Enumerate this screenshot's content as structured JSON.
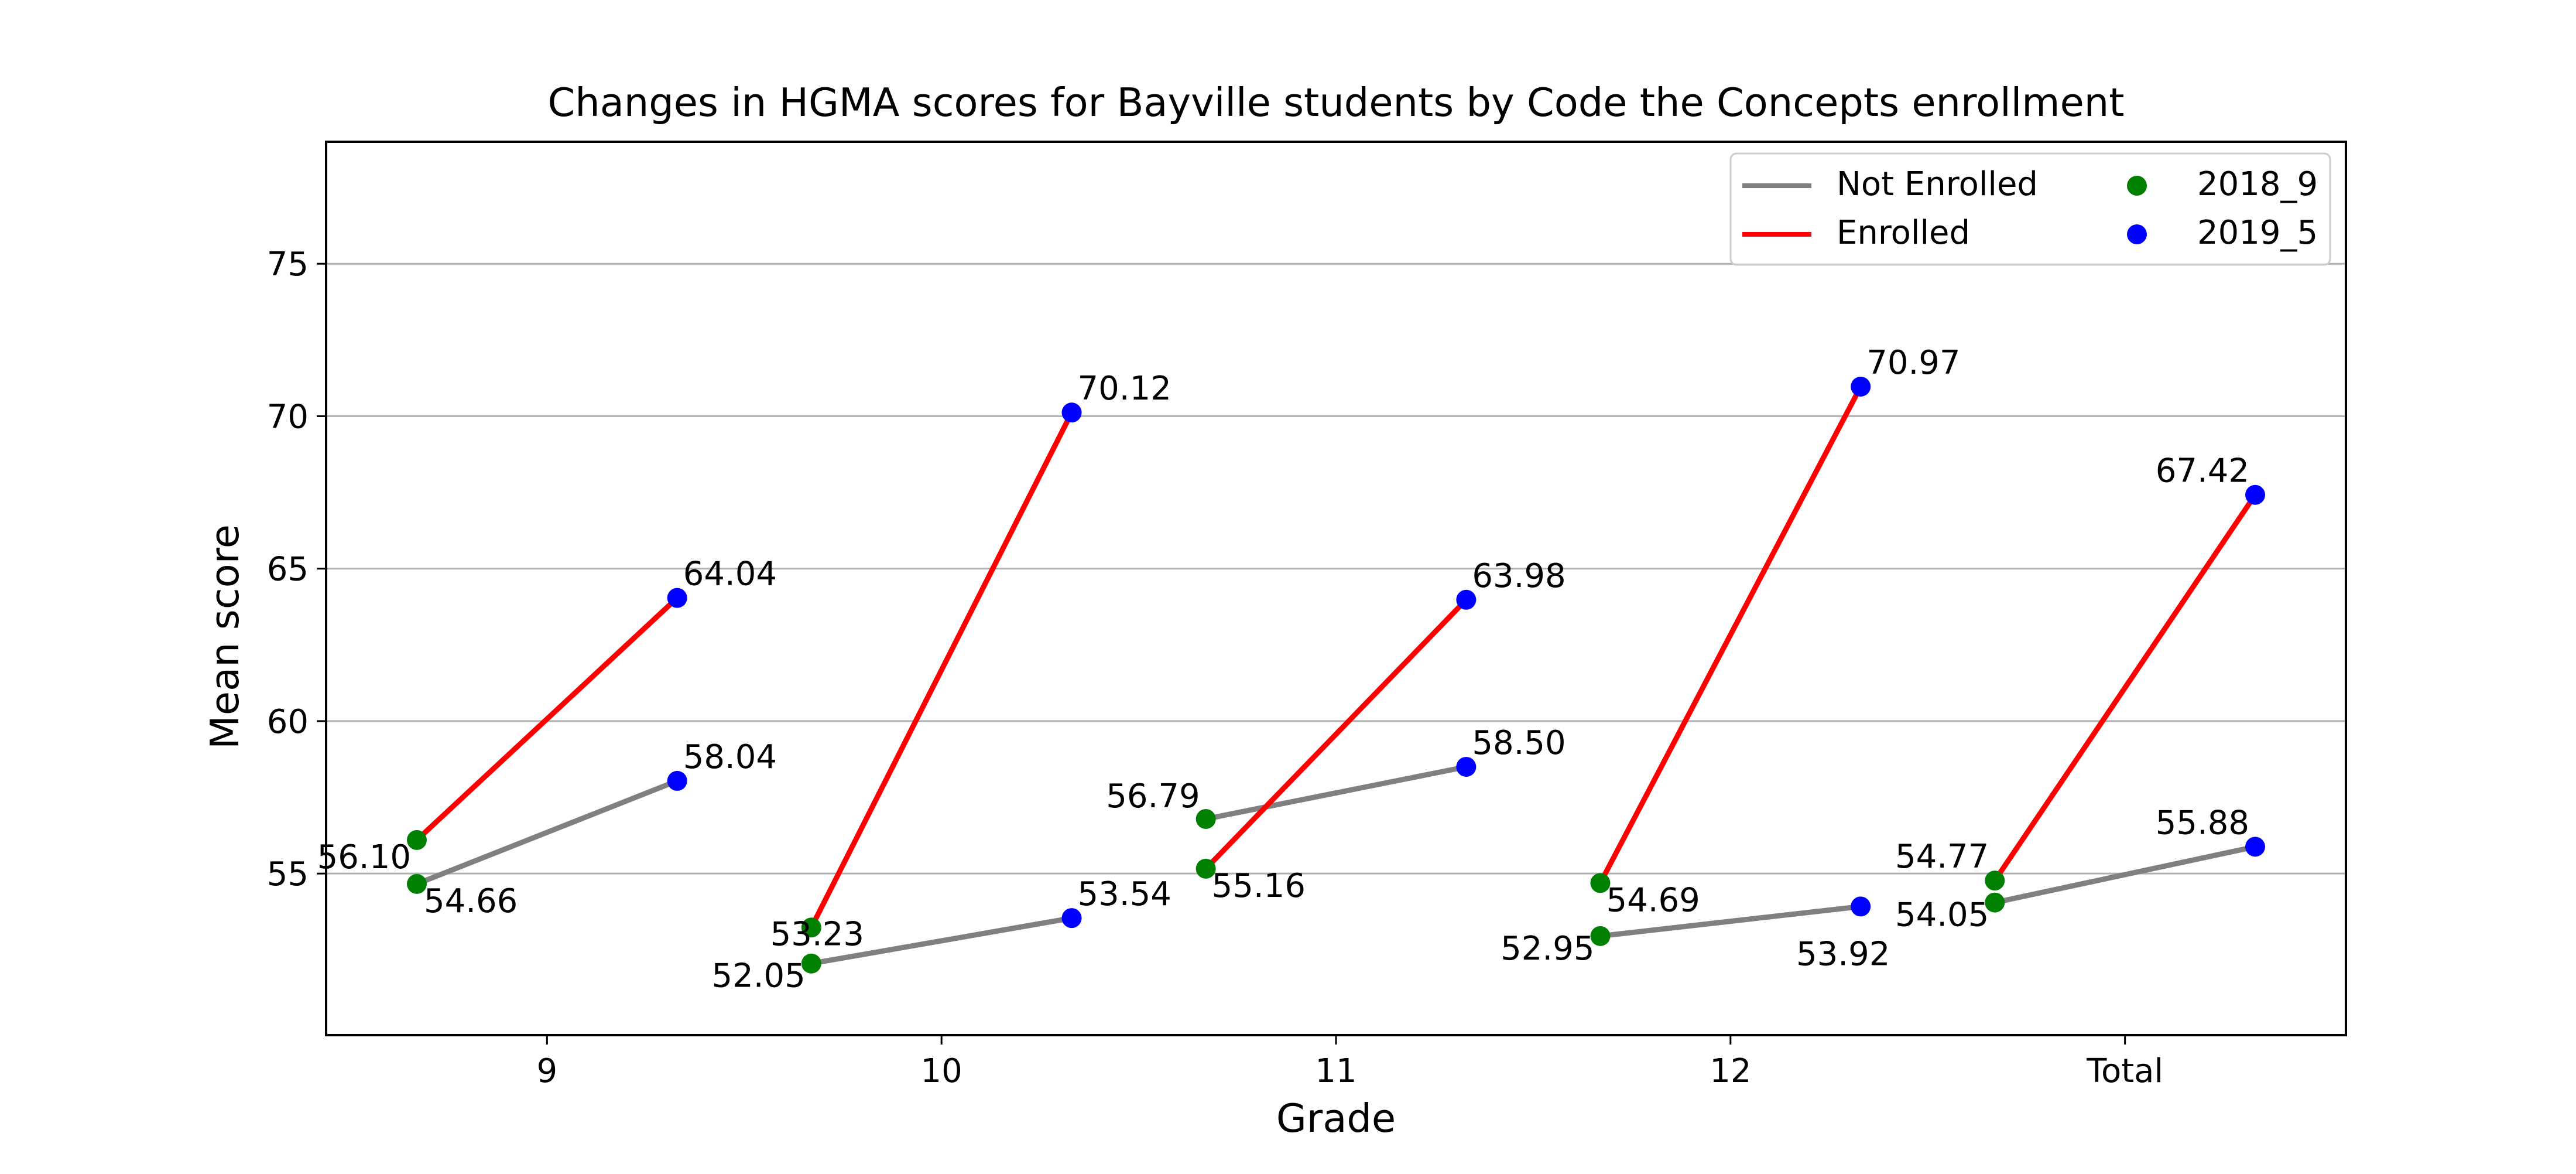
{
  "chart_data": {
    "type": "line",
    "title": "Changes in HGMA scores for Bayville students by Code the Concepts enrollment",
    "xlabel": "Grade",
    "ylabel": "Mean score",
    "categories": [
      "9",
      "10",
      "11",
      "12",
      "Total"
    ],
    "ylim": [
      49.7,
      79.0
    ],
    "yticks": [
      55,
      60,
      65,
      70,
      75
    ],
    "grid": "horizontal",
    "legend": {
      "placement": "top-right",
      "entries": [
        {
          "label": "Not Enrolled",
          "kind": "line",
          "color": "#808080"
        },
        {
          "label": "2018_9",
          "kind": "marker",
          "color": "#008000"
        },
        {
          "label": "Enrolled",
          "kind": "line",
          "color": "#ff0000"
        },
        {
          "label": "2019_5",
          "kind": "marker",
          "color": "#0000ff"
        }
      ]
    },
    "series": [
      {
        "name": "Not Enrolled",
        "color": "#808080",
        "values_2018_9": [
          54.66,
          52.05,
          56.79,
          52.95,
          54.05
        ],
        "values_2019_5": [
          58.04,
          53.54,
          58.5,
          53.92,
          55.88
        ],
        "labels_2018_9": [
          "54.66",
          "52.05",
          "56.79",
          "52.95",
          "54.05"
        ],
        "labels_2019_5": [
          "58.04",
          "53.54",
          "58.50",
          "53.92",
          "55.88"
        ]
      },
      {
        "name": "Enrolled",
        "color": "#ff0000",
        "values_2018_9": [
          56.1,
          53.23,
          55.16,
          54.69,
          54.77
        ],
        "values_2019_5": [
          64.04,
          70.12,
          63.98,
          70.97,
          67.42
        ],
        "labels_2018_9": [
          "56.10",
          "53.23",
          "55.16",
          "54.69",
          "54.77"
        ],
        "labels_2019_5": [
          "64.04",
          "70.12",
          "63.98",
          "70.97",
          "67.42"
        ]
      }
    ],
    "marker_colors": {
      "2018_9": "#008000",
      "2019_5": "#0000ff"
    }
  }
}
